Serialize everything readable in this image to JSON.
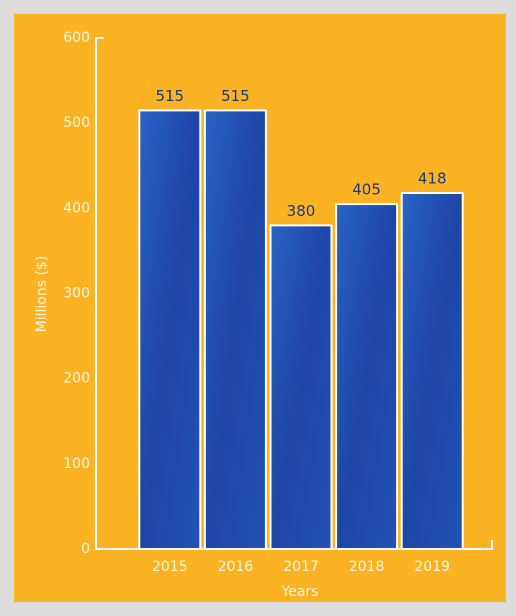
{
  "chart_data": {
    "type": "bar",
    "categories": [
      "2015",
      "2016",
      "2017",
      "2018",
      "2019"
    ],
    "values": [
      515,
      515,
      380,
      405,
      418
    ],
    "color": "#1f4aa8",
    "ylim": [
      0,
      600
    ],
    "yticks": [
      0,
      100,
      200,
      300,
      400,
      500,
      600
    ],
    "xlabel": "Years",
    "ylabel": "Millions ($)"
  }
}
